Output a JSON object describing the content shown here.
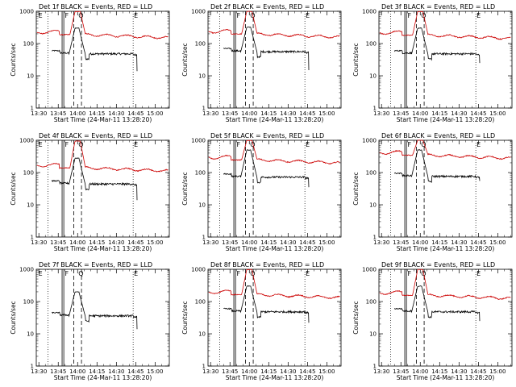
{
  "chart_data": [
    {
      "type": "line",
      "title": "Det 1f BLACK = Events, RED = LLD",
      "xlabel": "Start Time (24-Mar-11 13:28:20)",
      "ylabel": "Counts/sec",
      "x_ticks": [
        "13:30",
        "13:45",
        "14:00",
        "14:15",
        "14:30",
        "14:45",
        "15:00"
      ],
      "y_ticks": [
        "1",
        "10",
        "100",
        "1000"
      ],
      "ylim": [
        1,
        1000
      ],
      "yscale": "log",
      "markers": [
        "F",
        "Q",
        "E",
        "E"
      ],
      "colors": {
        "events": "#000000",
        "lld": "#cc0000"
      },
      "series": [
        {
          "name": "Events",
          "level": 60,
          "peak": 300,
          "end_drop": 14
        },
        {
          "name": "LLD",
          "level": 230,
          "peak": 980
        }
      ]
    },
    {
      "type": "line",
      "title": "Det 2f BLACK = Events, RED = LLD",
      "xlabel": "Start Time (24-Mar-11 13:28:20)",
      "ylabel": "Counts/sec",
      "x_ticks": [
        "13:30",
        "13:45",
        "14:00",
        "14:15",
        "14:30",
        "14:45",
        "15:00"
      ],
      "y_ticks": [
        "1",
        "10",
        "100",
        "1000"
      ],
      "ylim": [
        1,
        1000
      ],
      "yscale": "log",
      "markers": [
        "F",
        "Q",
        "E"
      ],
      "colors": {
        "events": "#000000",
        "lld": "#cc0000"
      },
      "series": [
        {
          "name": "Events",
          "level": 70,
          "peak": 320,
          "end_drop": 15
        },
        {
          "name": "LLD",
          "level": 240,
          "peak": 990
        }
      ]
    },
    {
      "type": "line",
      "title": "Det 3f BLACK = Events, RED = LLD",
      "xlabel": "Start Time (24-Mar-11 13:28:20)",
      "ylabel": "Counts/sec",
      "x_ticks": [
        "13:30",
        "13:45",
        "14:00",
        "14:15",
        "14:30",
        "14:45",
        "15:00"
      ],
      "y_ticks": [
        "1",
        "10",
        "100",
        "1000"
      ],
      "ylim": [
        1,
        1000
      ],
      "yscale": "log",
      "markers": [
        "F",
        "Q",
        "E"
      ],
      "colors": {
        "events": "#000000",
        "lld": "#cc0000"
      },
      "series": [
        {
          "name": "Events",
          "level": 60,
          "peak": 300,
          "end_drop": 25
        },
        {
          "name": "LLD",
          "level": 220,
          "peak": 980
        }
      ]
    },
    {
      "type": "line",
      "title": "Det 4f BLACK = Events, RED = LLD",
      "xlabel": "Start Time (24-Mar-11 13:28:20)",
      "ylabel": "Counts/sec",
      "x_ticks": [
        "13:30",
        "13:45",
        "14:00",
        "14:15",
        "14:30",
        "14:45",
        "15:00"
      ],
      "y_ticks": [
        "1",
        "10",
        "100",
        "1000"
      ],
      "ylim": [
        1,
        1000
      ],
      "yscale": "log",
      "markers": [
        "F",
        "Q",
        "E",
        "E"
      ],
      "colors": {
        "events": "#000000",
        "lld": "#cc0000"
      },
      "series": [
        {
          "name": "Events",
          "level": 55,
          "peak": 280,
          "end_drop": 14
        },
        {
          "name": "LLD",
          "level": 170,
          "peak": 950
        }
      ]
    },
    {
      "type": "line",
      "title": "Det 5f BLACK = Events, RED = LLD",
      "xlabel": "Start Time (24-Mar-11 13:28:20)",
      "ylabel": "Counts/sec",
      "x_ticks": [
        "13:30",
        "13:45",
        "14:00",
        "14:15",
        "14:30",
        "14:45",
        "15:00"
      ],
      "y_ticks": [
        "1",
        "10",
        "100",
        "1000"
      ],
      "ylim": [
        1,
        1000
      ],
      "yscale": "log",
      "markers": [
        "F",
        "Q",
        "E"
      ],
      "colors": {
        "events": "#000000",
        "lld": "#cc0000"
      },
      "series": [
        {
          "name": "Events",
          "level": 90,
          "peak": 500,
          "end_drop": 35
        },
        {
          "name": "LLD",
          "level": 300,
          "peak": 990
        }
      ]
    },
    {
      "type": "line",
      "title": "Det 6f BLACK = Events, RED = LLD",
      "xlabel": "Start Time (24-Mar-11 13:28:20)",
      "ylabel": "Counts/sec",
      "x_ticks": [
        "13:30",
        "13:45",
        "14:00",
        "14:15",
        "14:30",
        "14:45",
        "15:00"
      ],
      "y_ticks": [
        "1",
        "10",
        "100",
        "1000"
      ],
      "ylim": [
        1,
        1000
      ],
      "yscale": "log",
      "markers": [
        "F",
        "Q",
        "E"
      ],
      "colors": {
        "events": "#000000",
        "lld": "#cc0000"
      },
      "series": [
        {
          "name": "Events",
          "level": 95,
          "peak": 500,
          "end_drop": 55
        },
        {
          "name": "LLD",
          "level": 420,
          "peak": 1000
        }
      ]
    },
    {
      "type": "line",
      "title": "Det 7f BLACK = Events, RED = LLD",
      "xlabel": "Start Time (24-Mar-11 13:28:20)",
      "ylabel": "Counts/sec",
      "x_ticks": [
        "13:30",
        "13:45",
        "14:00",
        "14:15",
        "14:30",
        "14:45",
        "15:00"
      ],
      "y_ticks": [
        "1",
        "10",
        "100",
        "1000"
      ],
      "ylim": [
        1,
        1000
      ],
      "yscale": "log",
      "markers": [
        "E",
        "F",
        "Q",
        "E"
      ],
      "colors": {
        "events": "#000000",
        "lld": "#cc0000"
      },
      "series": [
        {
          "name": "Events",
          "level": 45,
          "peak": 200,
          "end_drop": 14
        }
      ]
    },
    {
      "type": "line",
      "title": "Det 8f BLACK = Events, RED = LLD",
      "xlabel": "Start Time (24-Mar-11 13:28:20)",
      "ylabel": "Counts/sec",
      "x_ticks": [
        "13:30",
        "13:45",
        "14:00",
        "14:15",
        "14:30",
        "14:45",
        "15:00"
      ],
      "y_ticks": [
        "1",
        "10",
        "100",
        "1000"
      ],
      "ylim": [
        1,
        1000
      ],
      "yscale": "log",
      "markers": [
        "F",
        "Q",
        "E"
      ],
      "colors": {
        "events": "#000000",
        "lld": "#cc0000"
      },
      "series": [
        {
          "name": "Events",
          "level": 60,
          "peak": 300,
          "end_drop": 22
        },
        {
          "name": "LLD",
          "level": 200,
          "peak": 980
        }
      ]
    },
    {
      "type": "line",
      "title": "Det 9f BLACK = Events, RED = LLD",
      "xlabel": "Start Time (24-Mar-11 13:28:20)",
      "ylabel": "Counts/sec",
      "x_ticks": [
        "13:30",
        "13:45",
        "14:00",
        "14:15",
        "14:30",
        "14:45",
        "15:00"
      ],
      "y_ticks": [
        "1",
        "10",
        "100",
        "1000"
      ],
      "ylim": [
        1,
        1000
      ],
      "yscale": "log",
      "markers": [
        "F",
        "Q",
        "E"
      ],
      "colors": {
        "events": "#000000",
        "lld": "#cc0000"
      },
      "series": [
        {
          "name": "Events",
          "level": 60,
          "peak": 300,
          "end_drop": 25
        },
        {
          "name": "LLD",
          "level": 190,
          "peak": 980
        }
      ]
    }
  ]
}
